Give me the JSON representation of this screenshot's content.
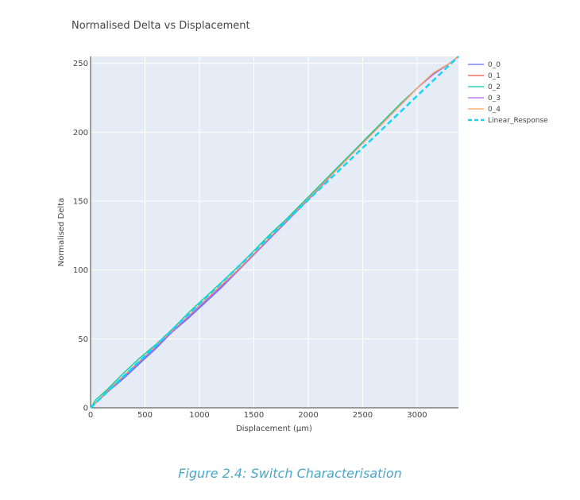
{
  "caption": "Figure 2.4: Switch Characterisation",
  "chart_data": {
    "type": "line",
    "title": "Normalised Delta vs Displacement",
    "xlabel": "Displacement (μm)",
    "ylabel": "Normalised Delta",
    "xlim": [
      0,
      3380
    ],
    "ylim": [
      0,
      255
    ],
    "xticks": [
      0,
      500,
      1000,
      1500,
      2000,
      2500,
      3000
    ],
    "yticks": [
      0,
      50,
      100,
      150,
      200,
      250
    ],
    "grid": true,
    "plot_bgcolor": "#E5ECF6",
    "legend_position": "right",
    "series": [
      {
        "name": "0_0",
        "color": "#636EFA",
        "dash": "solid",
        "x": [
          0,
          150,
          300,
          450,
          600,
          750,
          900,
          1050,
          1200,
          1350,
          1500,
          1650,
          1800,
          1950,
          2100,
          2250,
          2400,
          2550,
          2700,
          2850,
          3000,
          3150,
          3300,
          3380
        ],
        "y": [
          0,
          11,
          21,
          32,
          43,
          55,
          65,
          76,
          87,
          99,
          111,
          123,
          135,
          147,
          160,
          172,
          184,
          196,
          208,
          220,
          232,
          242,
          250,
          255
        ]
      },
      {
        "name": "0_1",
        "color": "#EF553B",
        "dash": "solid",
        "x": [
          0,
          150,
          300,
          450,
          600,
          750,
          900,
          1050,
          1200,
          1350,
          1500,
          1650,
          1800,
          1950,
          2100,
          2250,
          2400,
          2550,
          2700,
          2850,
          3000,
          3150,
          3300,
          3380
        ],
        "y": [
          0,
          12,
          23,
          34,
          45,
          56,
          67,
          78,
          89,
          100,
          112,
          124,
          136,
          148,
          160,
          172,
          184,
          196,
          208,
          220,
          232,
          243,
          250,
          255
        ]
      },
      {
        "name": "0_2",
        "color": "#00CC96",
        "dash": "solid",
        "x": [
          0,
          50,
          150,
          300,
          450,
          600,
          750,
          900,
          1050,
          1200,
          1350,
          1500,
          1650,
          1800,
          1950,
          2100,
          2250,
          2400,
          2550,
          2700,
          2850,
          3000,
          3150,
          3300,
          3380
        ],
        "y": [
          0,
          6,
          13,
          25,
          36,
          46,
          57,
          69,
          80,
          91,
          102,
          114,
          126,
          137,
          149,
          161,
          173,
          185,
          197,
          209,
          221,
          232,
          243,
          250,
          255
        ]
      },
      {
        "name": "0_3",
        "color": "#AB63FA",
        "dash": "solid",
        "x": [
          0,
          150,
          300,
          450,
          600,
          750,
          900,
          1050,
          1200,
          1350,
          1500,
          1650,
          1800,
          1950,
          2100,
          2250,
          2400,
          2550,
          2700,
          2850,
          3000,
          3150,
          3300,
          3380
        ],
        "y": [
          0,
          11,
          22,
          33,
          44,
          55,
          66,
          77,
          88,
          99,
          111,
          123,
          135,
          147,
          159,
          172,
          184,
          196,
          208,
          220,
          232,
          242,
          250,
          255
        ]
      },
      {
        "name": "0_4",
        "color": "#FFA15A",
        "dash": "solid",
        "x": [
          0,
          150,
          300,
          450,
          600,
          750,
          900,
          1050,
          1200,
          1350,
          1500,
          1650,
          1800,
          1950,
          2100,
          2250,
          2400,
          2550,
          2700,
          2850,
          3000,
          3150,
          3300,
          3380
        ],
        "y": [
          0,
          12,
          23,
          34,
          45,
          56,
          67,
          78,
          89,
          100,
          112,
          124,
          136,
          148,
          160,
          172,
          184,
          196,
          208,
          220,
          232,
          243,
          250,
          255
        ]
      },
      {
        "name": "Linear_Response",
        "color": "#19D3F3",
        "dash": "dash",
        "x": [
          0,
          3380
        ],
        "y": [
          0,
          255
        ]
      }
    ]
  }
}
